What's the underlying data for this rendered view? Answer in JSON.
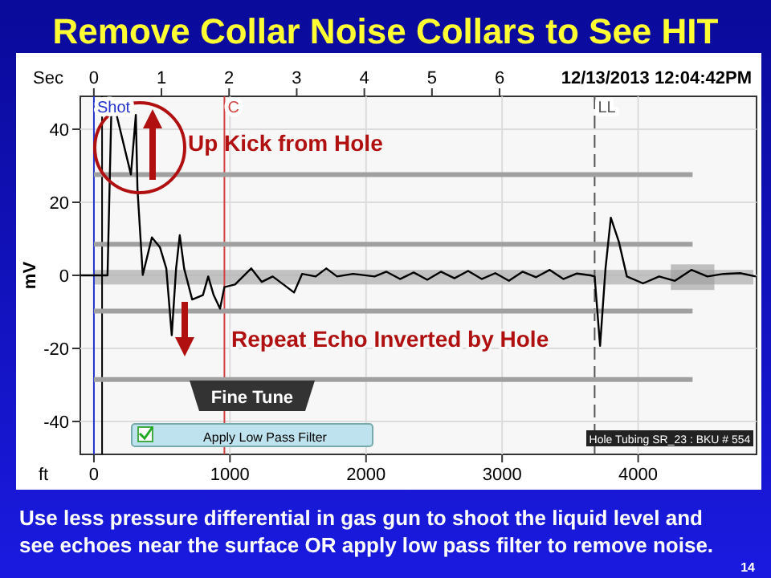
{
  "chart_data": {
    "type": "line",
    "title": "Remove Collar Noise Collars to See HIT",
    "xlabel": "ft",
    "ylabel": "mV",
    "x2label": "Sec",
    "xlim": [
      -100,
      4870
    ],
    "xticks": [
      0,
      1000,
      2000,
      3000,
      4000
    ],
    "x2lim": [
      -0.2,
      9.8
    ],
    "x2ticks": [
      0,
      1,
      2,
      3,
      4,
      5,
      6
    ],
    "ylim": [
      -49,
      49
    ],
    "yticks": [
      -40,
      -20,
      0,
      20,
      40
    ],
    "grid": true,
    "series": [
      {
        "color": "#000000",
        "x": [
          -100,
          0,
          60,
          100,
          130,
          166,
          272,
          308,
          320,
          359,
          426,
          485,
          532,
          572,
          604,
          631,
          663,
          722,
          801,
          840,
          880,
          927,
          959,
          1037,
          1156,
          1234,
          1314,
          1393,
          1471,
          1530,
          1630,
          1708,
          1787,
          1905,
          2063,
          2150,
          2250,
          2350,
          2450,
          2550,
          2650,
          2750,
          2850,
          2950,
          3050,
          3150,
          3250,
          3350,
          3450,
          3550,
          3650,
          3680,
          3720,
          3760,
          3799,
          3858,
          3917,
          4036,
          4154,
          4270,
          4391,
          4509,
          4627,
          4750,
          4864
        ],
        "values": [
          0,
          0,
          0,
          0,
          48,
          44,
          27.6,
          43.9,
          23.7,
          0.1,
          10.4,
          7.7,
          1.9,
          -16.4,
          1.9,
          11,
          1.9,
          -6.6,
          -5.4,
          -0.3,
          -5.4,
          -9.1,
          -3.2,
          -2.5,
          1.9,
          -1.8,
          -0.3,
          -2.5,
          -4.7,
          0.4,
          -0.3,
          1.9,
          -0.3,
          0.4,
          -0.3,
          1,
          -1,
          0.8,
          -1.2,
          1,
          -0.8,
          1.2,
          -1,
          0.6,
          -1.5,
          1,
          -0.5,
          1.5,
          -1,
          0.5,
          0,
          -0.3,
          -19.3,
          1.9,
          15.8,
          9.2,
          -0.3,
          -2.2,
          -0.3,
          -1.5,
          1.5,
          -0.3,
          0.4,
          0.6,
          -0.3
        ]
      }
    ],
    "ref_lines": [
      {
        "axis": "x",
        "value": 0,
        "label": "Shot",
        "color": "#2233cc"
      },
      {
        "axis": "x",
        "value": 60,
        "label": null,
        "color": "#000000"
      },
      {
        "axis": "x",
        "value": 959,
        "label": "C",
        "color": "#d04040"
      },
      {
        "axis": "x",
        "value": 3680,
        "label": "LL",
        "color": "#555555",
        "line_style": "dashed"
      },
      {
        "axis": "y",
        "value": 27.6,
        "label": null,
        "color": "#a0a0a0"
      },
      {
        "axis": "y",
        "value": 8.5,
        "label": null,
        "color": "#a0a0a0"
      },
      {
        "axis": "y",
        "value": -9.8,
        "label": null,
        "color": "#a0a0a0"
      },
      {
        "axis": "y",
        "value": -28.5,
        "label": null,
        "color": "#a0a0a0"
      }
    ],
    "bands": [
      {
        "axis": "y",
        "from": -2.5,
        "to": 1.5,
        "label": null,
        "color": "#b4b4b4"
      }
    ],
    "annotations": [
      "12/13/2013 12:04:42PM",
      "Up Kick from Hole",
      "Repeat Echo Inverted by Hole",
      "Fine Tune",
      "Apply Low Pass Filter",
      "Hole Tubing SR_23 : BKU # 554",
      "Use less pressure differential in gas gun to shoot the liquid level and see echoes near the surface OR apply low pass filter to remove noise.",
      "14"
    ]
  }
}
